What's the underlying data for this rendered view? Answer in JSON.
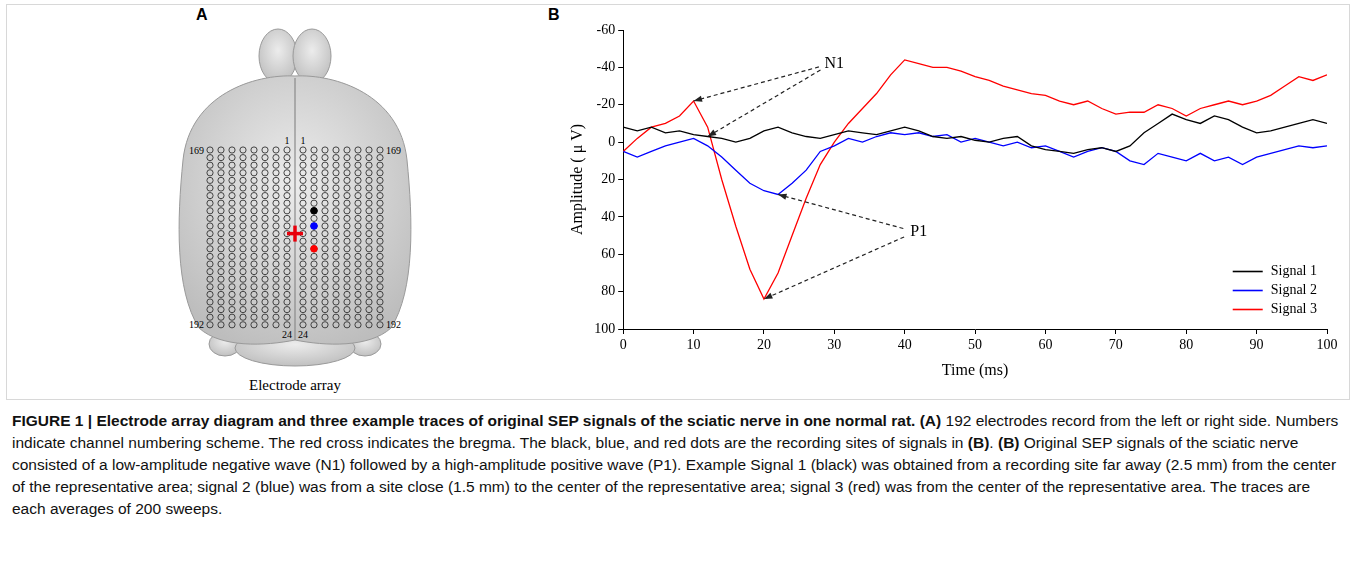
{
  "panel_a": {
    "letter": "A",
    "title": "Electrode array",
    "electrode_labels": {
      "left": {
        "top_outer": "169",
        "top_inner": "1",
        "bottom_outer": "192",
        "bottom_inner": "24"
      },
      "right": {
        "top_outer": "169",
        "top_inner": "1",
        "bottom_outer": "192",
        "bottom_inner": "24"
      }
    }
  },
  "chart_data": {
    "panel": "B",
    "type": "line",
    "x_label": "Time (ms)",
    "y_label": "Amplitude ( μ V)",
    "x": [
      0,
      2,
      4,
      6,
      8,
      10,
      12,
      14,
      16,
      18,
      20,
      22,
      24,
      26,
      28,
      30,
      32,
      34,
      36,
      38,
      40,
      42,
      44,
      46,
      48,
      50,
      52,
      54,
      56,
      58,
      60,
      62,
      64,
      66,
      68,
      70,
      72,
      74,
      76,
      78,
      80,
      82,
      84,
      86,
      88,
      90,
      92,
      94,
      96,
      98,
      100
    ],
    "series": [
      {
        "name": "Signal 1",
        "color": "#000000",
        "values": [
          -8,
          -6,
          -8,
          -5,
          -6,
          -4,
          -3,
          -2,
          0,
          -2,
          -6,
          -8,
          -5,
          -3,
          -2,
          -4,
          -6,
          -5,
          -4,
          -6,
          -8,
          -6,
          -3,
          -2,
          -3,
          -1,
          0,
          -2,
          -3,
          2,
          4,
          5,
          6,
          4,
          3,
          5,
          2,
          -5,
          -10,
          -15,
          -12,
          -10,
          -14,
          -12,
          -8,
          -5,
          -6,
          -8,
          -10,
          -12,
          -10
        ]
      },
      {
        "name": "Signal 2",
        "color": "#0000ff",
        "values": [
          5,
          8,
          5,
          2,
          0,
          -2,
          2,
          8,
          15,
          22,
          26,
          28,
          22,
          15,
          5,
          2,
          -2,
          0,
          -3,
          -5,
          -4,
          -5,
          -3,
          -4,
          0,
          -2,
          0,
          2,
          0,
          3,
          2,
          5,
          8,
          5,
          3,
          5,
          10,
          12,
          6,
          8,
          10,
          6,
          10,
          8,
          12,
          8,
          6,
          4,
          2,
          3,
          2
        ]
      },
      {
        "name": "Signal 3",
        "color": "#ff0000",
        "values": [
          5,
          -2,
          -8,
          -10,
          -14,
          -22,
          -8,
          20,
          45,
          68,
          84,
          70,
          50,
          30,
          12,
          0,
          -10,
          -18,
          -26,
          -36,
          -44,
          -42,
          -40,
          -40,
          -38,
          -35,
          -33,
          -30,
          -28,
          -26,
          -25,
          -22,
          -20,
          -22,
          -18,
          -15,
          -16,
          -16,
          -20,
          -18,
          -14,
          -18,
          -20,
          -22,
          -20,
          -22,
          -25,
          -30,
          -35,
          -33,
          -36
        ]
      }
    ],
    "xlim": [
      0,
      100
    ],
    "xticks": [
      0,
      10,
      20,
      30,
      40,
      50,
      60,
      70,
      80,
      90,
      100
    ],
    "ylim": [
      100,
      -60
    ],
    "yticks": [
      -60,
      -40,
      -20,
      0,
      20,
      40,
      60,
      80,
      100
    ],
    "grid": false,
    "legend": "lower right",
    "annotations": [
      {
        "text": "N1",
        "x": 30,
        "y": -42,
        "targets": [
          [
            10,
            -22
          ],
          [
            12,
            -3
          ]
        ]
      },
      {
        "text": "P1",
        "x": 42,
        "y": 48,
        "targets": [
          [
            22,
            28
          ],
          [
            20,
            84
          ]
        ]
      }
    ]
  },
  "caption": [
    {
      "text": "FIGURE 1 | Electrode array diagram and three example traces of original SEP signals of the sciatic nerve in one normal rat. ",
      "bold": true
    },
    {
      "text": "(A)",
      "bold": true
    },
    {
      "text": " 192 electrodes record from the left or right side. Numbers indicate channel numbering scheme. The red cross indicates the bregma. The black, blue, and red dots are the recording sites of signals in ",
      "bold": false
    },
    {
      "text": "(B)",
      "bold": true
    },
    {
      "text": ". ",
      "bold": false
    },
    {
      "text": "(B)",
      "bold": true
    },
    {
      "text": " Original SEP signals of the sciatic nerve consisted of a low-amplitude negative wave (N1) followed by a high-amplitude positive wave (P1). Example Signal 1 (black) was obtained from a recording site far away (2.5 mm) from the center of the representative area; signal 2 (blue) was from a site close (1.5 mm) to the center of the representative area; signal 3 (red) was from the center of the representative area. The traces are each averages of 200 sweeps.",
      "bold": false
    }
  ]
}
